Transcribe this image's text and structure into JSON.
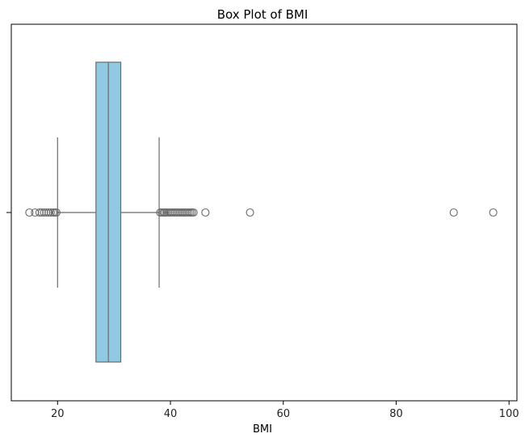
{
  "chart_data": {
    "type": "boxplot",
    "orientation": "horizontal",
    "title": "Box Plot of BMI",
    "xlabel": "BMI",
    "ylabel": "",
    "xlim": [
      11.8,
      101.4
    ],
    "xticks": [
      20,
      40,
      60,
      80,
      100
    ],
    "xtick_labels": [
      "20",
      "40",
      "60",
      "80",
      "100"
    ],
    "grid": false,
    "box": {
      "whisker_low": 20.0,
      "q1": 26.8,
      "median": 29.0,
      "q3": 31.2,
      "whisker_high": 38.0
    },
    "outliers": [
      15.0,
      16.0,
      16.8,
      17.2,
      17.6,
      18.0,
      18.4,
      18.8,
      19.2,
      19.5,
      19.8,
      38.2,
      38.5,
      38.8,
      39.0,
      39.3,
      39.6,
      39.9,
      40.2,
      40.5,
      40.8,
      41.1,
      41.4,
      41.7,
      42.0,
      42.3,
      42.6,
      42.9,
      43.2,
      43.5,
      43.8,
      44.1,
      46.2,
      54.1,
      90.2,
      97.2
    ],
    "colors": {
      "box_fill": "#8fcae2",
      "line": "#6b6b6b",
      "axis": "#000000"
    }
  }
}
